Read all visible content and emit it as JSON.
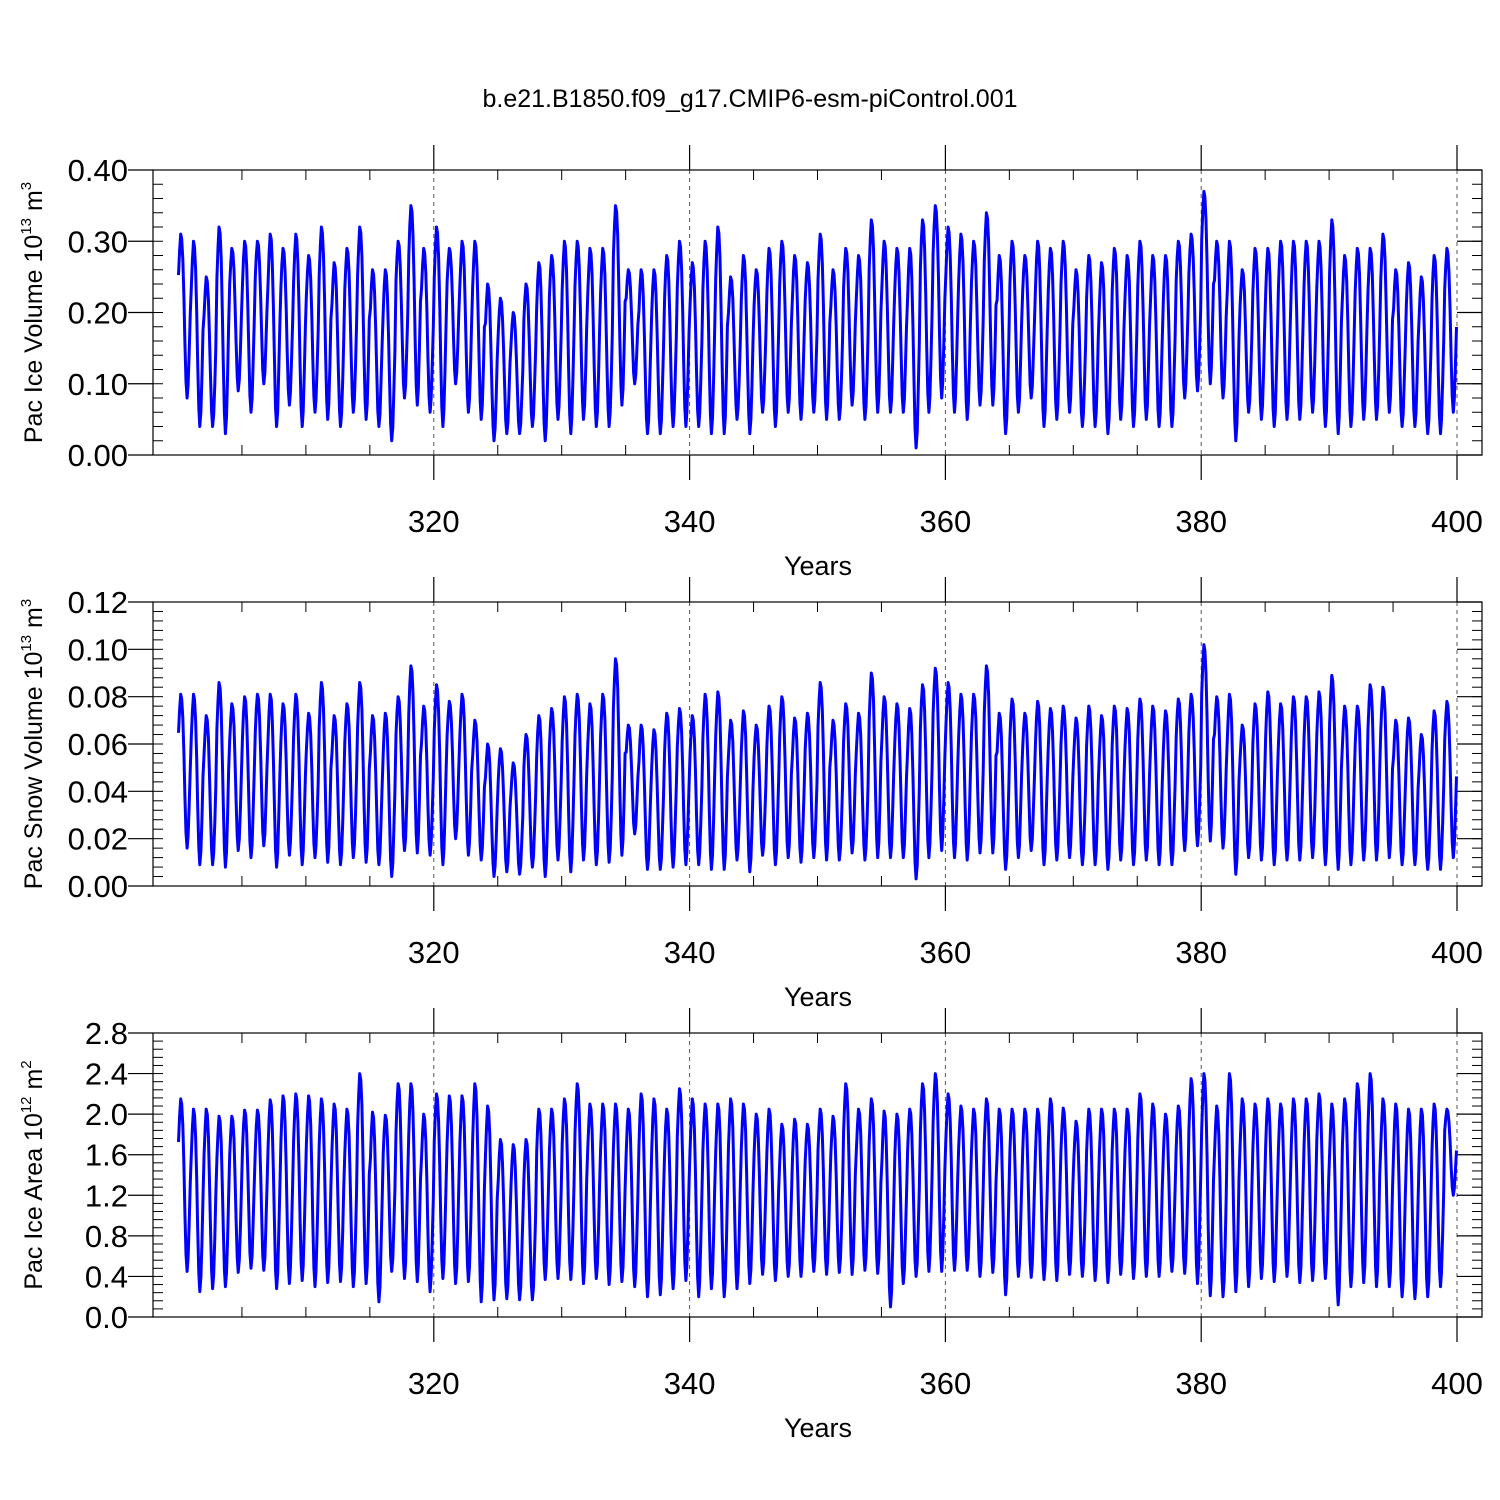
{
  "figure": {
    "title": "b.e21.B1850.f09_g17.CMIP6-esm-piControl.001"
  },
  "colors": {
    "series": "#0000ff",
    "axis": "#000000",
    "grid": "#555555",
    "background": "#ffffff"
  },
  "chart_data": [
    {
      "type": "line",
      "title": "",
      "xlabel": "Years",
      "ylabel": {
        "prefix": "Pac Ice Volume 10",
        "exp": "13",
        "unit": " m",
        "unit_exp": "3"
      },
      "xlim": [
        300.0,
        400.0
      ],
      "ylim": [
        0.0,
        0.4
      ],
      "x_ticks": [
        320,
        340,
        360,
        380,
        400
      ],
      "y_ticks": [
        "0.00",
        "0.10",
        "0.20",
        "0.30",
        "0.40"
      ],
      "y_tick_values": [
        0.0,
        0.1,
        0.2,
        0.3,
        0.4
      ],
      "y_minor_step": 0.02,
      "grid": "vertical dashed at major x ticks",
      "seasonal_cycle": "monthly, one max and one min per year",
      "series": [
        {
          "x_start": 300.0,
          "x_end": 400.0,
          "annual_max": [
            0.31,
            0.3,
            0.25,
            0.32,
            0.29,
            0.3,
            0.3,
            0.31,
            0.29,
            0.31,
            0.28,
            0.32,
            0.27,
            0.29,
            0.32,
            0.26,
            0.26,
            0.3,
            0.35,
            0.29,
            0.32,
            0.29,
            0.3,
            0.3,
            0.24,
            0.22,
            0.2,
            0.24,
            0.27,
            0.28,
            0.3,
            0.3,
            0.29,
            0.29,
            0.35,
            0.26,
            0.26,
            0.26,
            0.28,
            0.3,
            0.27,
            0.3,
            0.32,
            0.25,
            0.28,
            0.26,
            0.29,
            0.3,
            0.28,
            0.27,
            0.31,
            0.26,
            0.29,
            0.28,
            0.33,
            0.3,
            0.29,
            0.29,
            0.33,
            0.35,
            0.32,
            0.31,
            0.3,
            0.34,
            0.28,
            0.3,
            0.28,
            0.3,
            0.29,
            0.3,
            0.26,
            0.28,
            0.27,
            0.29,
            0.28,
            0.3,
            0.28,
            0.28,
            0.3,
            0.31,
            0.37,
            0.3,
            0.3,
            0.26,
            0.29,
            0.29,
            0.3,
            0.3,
            0.3,
            0.3,
            0.33,
            0.28,
            0.29,
            0.29,
            0.31,
            0.26,
            0.27,
            0.25,
            0.28,
            0.29
          ],
          "annual_min": [
            0.08,
            0.04,
            0.04,
            0.03,
            0.09,
            0.06,
            0.1,
            0.04,
            0.07,
            0.04,
            0.06,
            0.05,
            0.04,
            0.06,
            0.05,
            0.04,
            0.02,
            0.08,
            0.07,
            0.06,
            0.04,
            0.1,
            0.06,
            0.05,
            0.02,
            0.03,
            0.03,
            0.04,
            0.02,
            0.05,
            0.03,
            0.05,
            0.04,
            0.04,
            0.07,
            0.1,
            0.03,
            0.03,
            0.04,
            0.04,
            0.04,
            0.03,
            0.03,
            0.05,
            0.03,
            0.06,
            0.04,
            0.06,
            0.05,
            0.06,
            0.05,
            0.05,
            0.07,
            0.05,
            0.06,
            0.06,
            0.06,
            0.01,
            0.06,
            0.08,
            0.06,
            0.05,
            0.07,
            0.07,
            0.03,
            0.06,
            0.08,
            0.04,
            0.05,
            0.06,
            0.04,
            0.04,
            0.03,
            0.05,
            0.04,
            0.05,
            0.04,
            0.04,
            0.08,
            0.09,
            0.1,
            0.08,
            0.02,
            0.06,
            0.05,
            0.04,
            0.05,
            0.05,
            0.06,
            0.04,
            0.03,
            0.04,
            0.05,
            0.05,
            0.06,
            0.04,
            0.04,
            0.03,
            0.03,
            0.06
          ]
        }
      ]
    },
    {
      "type": "line",
      "title": "",
      "xlabel": "Years",
      "ylabel": {
        "prefix": "Pac Snow Volume 10",
        "exp": "13",
        "unit": " m",
        "unit_exp": "3"
      },
      "xlim": [
        300.0,
        400.0
      ],
      "ylim": [
        0.0,
        0.12
      ],
      "x_ticks": [
        320,
        340,
        360,
        380,
        400
      ],
      "y_ticks": [
        "0.00",
        "0.02",
        "0.04",
        "0.06",
        "0.08",
        "0.10",
        "0.12"
      ],
      "y_tick_values": [
        0.0,
        0.02,
        0.04,
        0.06,
        0.08,
        0.1,
        0.12
      ],
      "y_minor_step": 0.004,
      "grid": "vertical dashed at major x ticks",
      "seasonal_cycle": "monthly, one max and one min per year",
      "series": [
        {
          "x_start": 300.0,
          "x_end": 400.0,
          "annual_max": [
            0.081,
            0.081,
            0.072,
            0.086,
            0.077,
            0.08,
            0.081,
            0.081,
            0.077,
            0.081,
            0.073,
            0.086,
            0.072,
            0.077,
            0.086,
            0.072,
            0.073,
            0.08,
            0.093,
            0.076,
            0.085,
            0.078,
            0.081,
            0.07,
            0.06,
            0.058,
            0.052,
            0.064,
            0.072,
            0.075,
            0.08,
            0.081,
            0.077,
            0.081,
            0.096,
            0.068,
            0.068,
            0.066,
            0.073,
            0.075,
            0.072,
            0.081,
            0.082,
            0.07,
            0.074,
            0.068,
            0.076,
            0.08,
            0.071,
            0.073,
            0.086,
            0.07,
            0.077,
            0.073,
            0.09,
            0.08,
            0.077,
            0.075,
            0.085,
            0.092,
            0.086,
            0.081,
            0.081,
            0.093,
            0.073,
            0.079,
            0.073,
            0.078,
            0.075,
            0.076,
            0.071,
            0.076,
            0.072,
            0.076,
            0.075,
            0.079,
            0.076,
            0.074,
            0.079,
            0.081,
            0.102,
            0.08,
            0.081,
            0.068,
            0.077,
            0.082,
            0.077,
            0.08,
            0.08,
            0.082,
            0.089,
            0.076,
            0.076,
            0.085,
            0.084,
            0.07,
            0.071,
            0.064,
            0.074,
            0.078
          ],
          "annual_min": [
            0.016,
            0.009,
            0.009,
            0.008,
            0.015,
            0.012,
            0.017,
            0.008,
            0.013,
            0.009,
            0.012,
            0.01,
            0.009,
            0.012,
            0.01,
            0.009,
            0.004,
            0.015,
            0.014,
            0.013,
            0.009,
            0.02,
            0.013,
            0.011,
            0.004,
            0.006,
            0.005,
            0.008,
            0.004,
            0.011,
            0.006,
            0.011,
            0.009,
            0.01,
            0.013,
            0.022,
            0.007,
            0.007,
            0.008,
            0.009,
            0.009,
            0.007,
            0.007,
            0.011,
            0.006,
            0.013,
            0.009,
            0.012,
            0.01,
            0.012,
            0.011,
            0.011,
            0.014,
            0.011,
            0.012,
            0.012,
            0.012,
            0.003,
            0.012,
            0.015,
            0.012,
            0.011,
            0.014,
            0.014,
            0.007,
            0.012,
            0.015,
            0.009,
            0.011,
            0.012,
            0.009,
            0.009,
            0.007,
            0.011,
            0.009,
            0.011,
            0.009,
            0.009,
            0.015,
            0.017,
            0.019,
            0.016,
            0.005,
            0.012,
            0.011,
            0.009,
            0.011,
            0.011,
            0.012,
            0.009,
            0.007,
            0.009,
            0.011,
            0.011,
            0.012,
            0.009,
            0.009,
            0.007,
            0.007,
            0.012
          ]
        }
      ]
    },
    {
      "type": "line",
      "title": "",
      "xlabel": "Years",
      "ylabel": {
        "prefix": "Pac Ice Area 10",
        "exp": "12",
        "unit": " m",
        "unit_exp": "2"
      },
      "xlim": [
        300.0,
        400.0
      ],
      "ylim": [
        0.0,
        2.8
      ],
      "x_ticks": [
        320,
        340,
        360,
        380,
        400
      ],
      "y_ticks": [
        "0.0",
        "0.4",
        "0.8",
        "1.2",
        "1.6",
        "2.0",
        "2.4",
        "2.8"
      ],
      "y_tick_values": [
        0.0,
        0.4,
        0.8,
        1.2,
        1.6,
        2.0,
        2.4,
        2.8
      ],
      "y_minor_step": 0.08,
      "grid": "vertical dashed at major x ticks",
      "seasonal_cycle": "monthly, one max and one min per year",
      "series": [
        {
          "x_start": 300.0,
          "x_end": 400.0,
          "annual_max": [
            2.15,
            2.05,
            2.05,
            1.98,
            1.98,
            2.04,
            2.04,
            2.14,
            2.18,
            2.2,
            2.18,
            2.15,
            2.1,
            2.05,
            2.4,
            2.02,
            1.99,
            2.3,
            2.3,
            2.0,
            2.2,
            2.18,
            2.18,
            2.3,
            2.08,
            1.75,
            1.7,
            1.75,
            2.05,
            2.05,
            2.15,
            2.3,
            2.1,
            2.1,
            2.1,
            2.05,
            2.2,
            2.15,
            2.05,
            2.25,
            2.15,
            2.1,
            2.1,
            2.15,
            2.1,
            2.0,
            2.05,
            1.9,
            1.95,
            1.9,
            2.05,
            1.98,
            2.3,
            2.05,
            2.15,
            2.03,
            2.0,
            2.05,
            2.3,
            2.4,
            2.2,
            2.08,
            2.05,
            2.15,
            2.05,
            2.05,
            2.05,
            2.05,
            2.15,
            2.06,
            1.93,
            2.05,
            2.05,
            2.05,
            2.05,
            2.2,
            2.1,
            2.0,
            2.08,
            2.35,
            2.4,
            2.08,
            2.4,
            2.15,
            2.1,
            2.15,
            2.1,
            2.15,
            2.15,
            2.2,
            2.1,
            2.15,
            2.3,
            2.4,
            2.15,
            2.1,
            2.05,
            2.05,
            2.1,
            2.05
          ],
          "annual_min": [
            0.45,
            0.25,
            0.28,
            0.3,
            0.44,
            0.48,
            0.46,
            0.28,
            0.33,
            0.36,
            0.3,
            0.34,
            0.35,
            0.3,
            0.33,
            0.15,
            0.45,
            0.38,
            0.35,
            0.25,
            0.38,
            0.33,
            0.35,
            0.15,
            0.17,
            0.18,
            0.17,
            0.17,
            0.37,
            0.38,
            0.37,
            0.33,
            0.38,
            0.32,
            0.35,
            0.3,
            0.2,
            0.22,
            0.28,
            0.36,
            0.2,
            0.28,
            0.2,
            0.28,
            0.33,
            0.42,
            0.36,
            0.4,
            0.4,
            0.45,
            0.42,
            0.44,
            0.42,
            0.46,
            0.43,
            0.1,
            0.33,
            0.4,
            0.45,
            0.45,
            0.46,
            0.46,
            0.4,
            0.44,
            0.22,
            0.4,
            0.39,
            0.37,
            0.36,
            0.42,
            0.4,
            0.36,
            0.34,
            0.42,
            0.38,
            0.4,
            0.4,
            0.45,
            0.43,
            0.33,
            0.21,
            0.2,
            0.25,
            0.3,
            0.38,
            0.35,
            0.4,
            0.34,
            0.36,
            0.38,
            0.12,
            0.3,
            0.34,
            0.3,
            0.3,
            0.2,
            0.18,
            0.2,
            0.3,
            1.2
          ]
        }
      ]
    }
  ]
}
